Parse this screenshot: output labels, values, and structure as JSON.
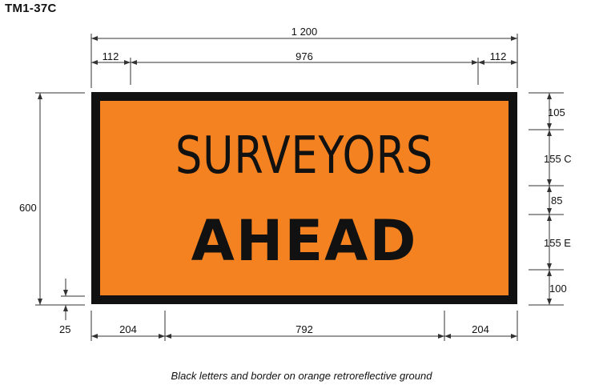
{
  "sign": {
    "code": "TM1-37C",
    "legend": [
      "SURVEYORS",
      "AHEAD"
    ],
    "colors": {
      "ground": "#f58220",
      "letters_border": "#111111"
    }
  },
  "dimensions": {
    "overall_width": "1 200",
    "top_left_margin": "112",
    "top_center": "976",
    "top_right_margin": "112",
    "height": "600",
    "border": "25",
    "bottom_left": "204",
    "bottom_center": "792",
    "bottom_right": "204",
    "right_vertical": [
      "105",
      "155 C",
      "85",
      "155 E",
      "100"
    ]
  },
  "caption": "Black letters and border on orange retroreflective ground"
}
